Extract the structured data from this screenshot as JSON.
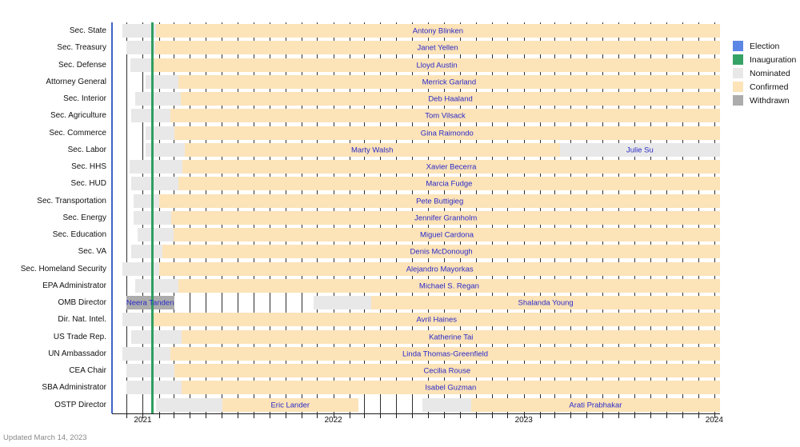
{
  "updated_note": "Updated March 14, 2023",
  "colors": {
    "election": "#5c86e6",
    "inauguration": "#35a266",
    "nominated": "#e8e8e8",
    "confirmed": "#fce3b8",
    "withdrawn": "#acacac",
    "election_line": "#4463c4",
    "inauguration_line": "#2f9e60",
    "grid": "#2f2f2f",
    "name_text": "#2a2ac8"
  },
  "legend": [
    {
      "key": "election",
      "label": "Election",
      "color": "#5c86e6"
    },
    {
      "key": "inauguration",
      "label": "Inauguration",
      "color": "#35a266"
    },
    {
      "key": "nominated",
      "label": "Nominated",
      "color": "#e8e8e8"
    },
    {
      "key": "confirmed",
      "label": "Confirmed",
      "color": "#fce3b8"
    },
    {
      "key": "withdrawn",
      "label": "Withdrawn",
      "color": "#acacac"
    }
  ],
  "chart_data": {
    "type": "gantt",
    "title": "",
    "legend_position": "right",
    "grid": "monthly vertical lines",
    "axis": {
      "start": "2020-11-03",
      "end": "2024-01-12",
      "first_gridline_month": "2020-12-01",
      "years": [
        {
          "label": "2021",
          "date": "2021-01-01"
        },
        {
          "label": "2022",
          "date": "2022-01-01"
        },
        {
          "label": "2023",
          "date": "2023-01-01"
        },
        {
          "label": "2024",
          "date": "2024-01-01"
        }
      ]
    },
    "events": [
      {
        "key": "election",
        "name": "Election",
        "date": "2020-11-03",
        "line_width": 2
      },
      {
        "key": "inauguration",
        "name": "Inauguration",
        "date": "2021-01-20",
        "line_width": 3
      }
    ],
    "rows": [
      {
        "position": "Sec. State",
        "people": [
          {
            "name": "Antony Blinken",
            "segments": [
              {
                "status": "nominated",
                "start": "2020-11-23",
                "end": "2021-01-26"
              },
              {
                "status": "confirmed",
                "start": "2021-01-26",
                "end": "2024-01-12"
              }
            ]
          }
        ]
      },
      {
        "position": "Sec. Treasury",
        "people": [
          {
            "name": "Janet Yellen",
            "segments": [
              {
                "status": "nominated",
                "start": "2020-11-30",
                "end": "2021-01-25"
              },
              {
                "status": "confirmed",
                "start": "2021-01-25",
                "end": "2024-01-12"
              }
            ]
          }
        ]
      },
      {
        "position": "Sec. Defense",
        "people": [
          {
            "name": "Lloyd Austin",
            "segments": [
              {
                "status": "nominated",
                "start": "2020-12-08",
                "end": "2021-01-22"
              },
              {
                "status": "confirmed",
                "start": "2021-01-22",
                "end": "2024-01-12"
              }
            ]
          }
        ]
      },
      {
        "position": "Attorney General",
        "people": [
          {
            "name": "Merrick Garland",
            "segments": [
              {
                "status": "nominated",
                "start": "2021-01-07",
                "end": "2021-03-10"
              },
              {
                "status": "confirmed",
                "start": "2021-03-10",
                "end": "2024-01-12"
              }
            ]
          }
        ]
      },
      {
        "position": "Sec. Interior",
        "people": [
          {
            "name": "Deb Haaland",
            "segments": [
              {
                "status": "nominated",
                "start": "2020-12-17",
                "end": "2021-03-15"
              },
              {
                "status": "confirmed",
                "start": "2021-03-15",
                "end": "2024-01-12"
              }
            ]
          }
        ]
      },
      {
        "position": "Sec. Agriculture",
        "people": [
          {
            "name": "Tom Vilsack",
            "segments": [
              {
                "status": "nominated",
                "start": "2020-12-10",
                "end": "2021-02-23"
              },
              {
                "status": "confirmed",
                "start": "2021-02-23",
                "end": "2024-01-12"
              }
            ]
          }
        ]
      },
      {
        "position": "Sec. Commerce",
        "people": [
          {
            "name": "Gina Raimondo",
            "segments": [
              {
                "status": "nominated",
                "start": "2021-01-07",
                "end": "2021-03-02"
              },
              {
                "status": "confirmed",
                "start": "2021-03-02",
                "end": "2024-01-12"
              }
            ]
          }
        ]
      },
      {
        "position": "Sec. Labor",
        "people": [
          {
            "name": "Marty Walsh",
            "segments": [
              {
                "status": "nominated",
                "start": "2021-01-07",
                "end": "2021-03-22"
              },
              {
                "status": "confirmed",
                "start": "2021-03-22",
                "end": "2023-03-11"
              }
            ]
          },
          {
            "name": "Julie Su",
            "segments": [
              {
                "status": "nominated",
                "start": "2023-03-11",
                "end": "2024-01-12"
              }
            ]
          }
        ]
      },
      {
        "position": "Sec. HHS",
        "people": [
          {
            "name": "Xavier Becerra",
            "segments": [
              {
                "status": "nominated",
                "start": "2020-12-07",
                "end": "2021-03-18"
              },
              {
                "status": "confirmed",
                "start": "2021-03-18",
                "end": "2024-01-12"
              }
            ]
          }
        ]
      },
      {
        "position": "Sec. HUD",
        "people": [
          {
            "name": "Marcia Fudge",
            "segments": [
              {
                "status": "nominated",
                "start": "2020-12-10",
                "end": "2021-03-10"
              },
              {
                "status": "confirmed",
                "start": "2021-03-10",
                "end": "2024-01-12"
              }
            ]
          }
        ]
      },
      {
        "position": "Sec. Transportation",
        "people": [
          {
            "name": "Pete Buttigieg",
            "segments": [
              {
                "status": "nominated",
                "start": "2020-12-15",
                "end": "2021-02-02"
              },
              {
                "status": "confirmed",
                "start": "2021-02-02",
                "end": "2024-01-12"
              }
            ]
          }
        ]
      },
      {
        "position": "Sec. Energy",
        "people": [
          {
            "name": "Jennifer Granholm",
            "segments": [
              {
                "status": "nominated",
                "start": "2020-12-15",
                "end": "2021-02-25"
              },
              {
                "status": "confirmed",
                "start": "2021-02-25",
                "end": "2024-01-12"
              }
            ]
          }
        ]
      },
      {
        "position": "Sec. Education",
        "people": [
          {
            "name": "Miguel Cardona",
            "segments": [
              {
                "status": "nominated",
                "start": "2020-12-22",
                "end": "2021-03-01"
              },
              {
                "status": "confirmed",
                "start": "2021-03-01",
                "end": "2024-01-12"
              }
            ]
          }
        ]
      },
      {
        "position": "Sec. VA",
        "people": [
          {
            "name": "Denis McDonough",
            "segments": [
              {
                "status": "nominated",
                "start": "2020-12-10",
                "end": "2021-02-08"
              },
              {
                "status": "confirmed",
                "start": "2021-02-08",
                "end": "2024-01-12"
              }
            ]
          }
        ]
      },
      {
        "position": "Sec. Homeland Security",
        "people": [
          {
            "name": "Alejandro Mayorkas",
            "segments": [
              {
                "status": "nominated",
                "start": "2020-11-23",
                "end": "2021-02-02"
              },
              {
                "status": "confirmed",
                "start": "2021-02-02",
                "end": "2024-01-12"
              }
            ]
          }
        ]
      },
      {
        "position": "EPA Administrator",
        "people": [
          {
            "name": "Michael S. Regan",
            "segments": [
              {
                "status": "nominated",
                "start": "2020-12-17",
                "end": "2021-03-10"
              },
              {
                "status": "confirmed",
                "start": "2021-03-10",
                "end": "2024-01-12"
              }
            ]
          }
        ]
      },
      {
        "position": "OMB Director",
        "people": [
          {
            "name": "Neera Tanden",
            "segments": [
              {
                "status": "withdrawn",
                "start": "2020-11-30",
                "end": "2021-03-02"
              }
            ]
          },
          {
            "name": "Shalanda Young",
            "segments": [
              {
                "status": "nominated",
                "start": "2021-11-24",
                "end": "2022-03-15"
              },
              {
                "status": "confirmed",
                "start": "2022-03-15",
                "end": "2024-01-12"
              }
            ]
          }
        ]
      },
      {
        "position": "Dir. Nat. Intel.",
        "people": [
          {
            "name": "Avril Haines",
            "segments": [
              {
                "status": "nominated",
                "start": "2020-11-23",
                "end": "2021-01-21"
              },
              {
                "status": "confirmed",
                "start": "2021-01-21",
                "end": "2024-01-12"
              }
            ]
          }
        ]
      },
      {
        "position": "US Trade Rep.",
        "people": [
          {
            "name": "Katherine Tai",
            "segments": [
              {
                "status": "nominated",
                "start": "2020-12-10",
                "end": "2021-03-17"
              },
              {
                "status": "confirmed",
                "start": "2021-03-17",
                "end": "2024-01-12"
              }
            ]
          }
        ]
      },
      {
        "position": "UN Ambassador",
        "people": [
          {
            "name": "Linda Thomas-Greenfield",
            "segments": [
              {
                "status": "nominated",
                "start": "2020-11-23",
                "end": "2021-02-23"
              },
              {
                "status": "confirmed",
                "start": "2021-02-23",
                "end": "2024-01-12"
              }
            ]
          }
        ]
      },
      {
        "position": "CEA Chair",
        "people": [
          {
            "name": "Cecilia Rouse",
            "segments": [
              {
                "status": "nominated",
                "start": "2020-11-30",
                "end": "2021-03-02"
              },
              {
                "status": "confirmed",
                "start": "2021-03-02",
                "end": "2024-01-12"
              }
            ]
          }
        ]
      },
      {
        "position": "SBA Administrator",
        "people": [
          {
            "name": "Isabel Guzman",
            "segments": [
              {
                "status": "nominated",
                "start": "2020-12-01",
                "end": "2021-03-16"
              },
              {
                "status": "confirmed",
                "start": "2021-03-16",
                "end": "2024-01-12"
              }
            ]
          }
        ]
      },
      {
        "position": "OSTP Director",
        "people": [
          {
            "name": "Eric Lander",
            "segments": [
              {
                "status": "nominated",
                "start": "2021-01-26",
                "end": "2021-06-02"
              },
              {
                "status": "confirmed",
                "start": "2021-06-02",
                "end": "2022-02-18"
              }
            ]
          },
          {
            "name": "Arati Prabhakar",
            "segments": [
              {
                "status": "nominated",
                "start": "2022-06-21",
                "end": "2022-09-22"
              },
              {
                "status": "confirmed",
                "start": "2022-09-22",
                "end": "2024-01-12"
              }
            ]
          }
        ]
      }
    ]
  }
}
